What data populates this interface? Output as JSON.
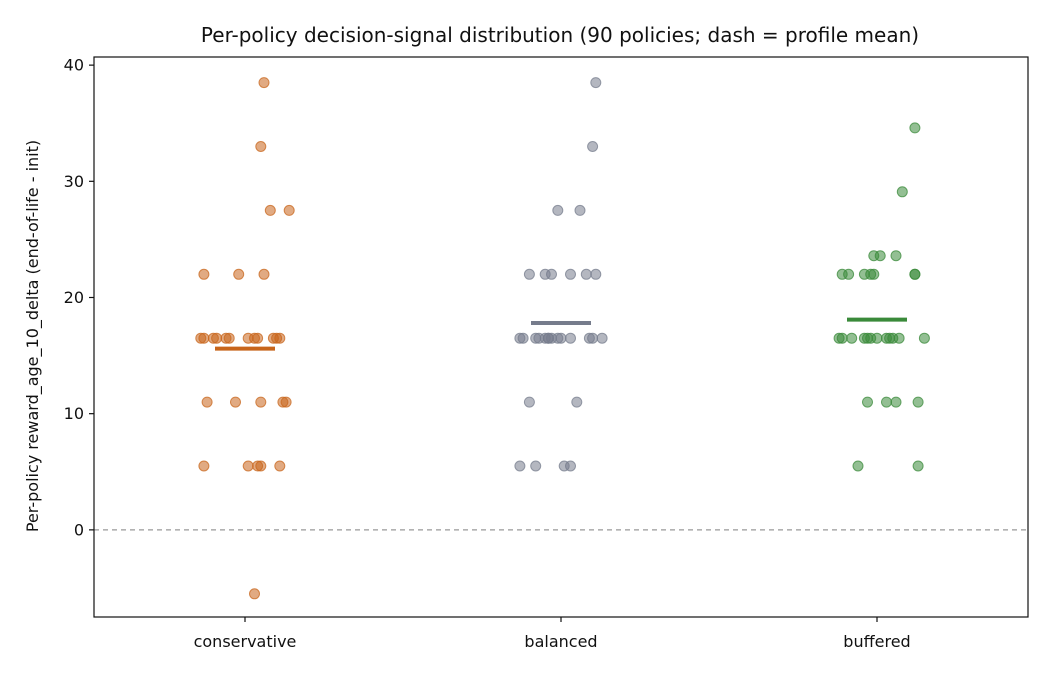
{
  "chart_data": {
    "type": "scatter",
    "title": "Per-policy decision-signal distribution (90 policies; dash = profile mean)",
    "xlabel": "",
    "ylabel": "Per-policy reward_age_10_delta (end-of-life - init)",
    "categories": [
      "conservative",
      "balanced",
      "buffered"
    ],
    "ylim": [
      -7.5,
      40.7
    ],
    "yticks": [
      0,
      10,
      20,
      30,
      40
    ],
    "reference_line": {
      "y": 0,
      "style": "dashed",
      "color": "#999999"
    },
    "grid": false,
    "series": [
      {
        "category": "conservative",
        "color": "#c8651b",
        "mean": 15.6,
        "points": [
          {
            "jitter": 0.06,
            "y": 38.5
          },
          {
            "jitter": 0.05,
            "y": 33.0
          },
          {
            "jitter": 0.08,
            "y": 27.5
          },
          {
            "jitter": 0.14,
            "y": 27.5
          },
          {
            "jitter": -0.13,
            "y": 22.0
          },
          {
            "jitter": -0.02,
            "y": 22.0
          },
          {
            "jitter": 0.06,
            "y": 22.0
          },
          {
            "jitter": -0.14,
            "y": 16.5
          },
          {
            "jitter": -0.13,
            "y": 16.5
          },
          {
            "jitter": -0.1,
            "y": 16.5
          },
          {
            "jitter": -0.09,
            "y": 16.5
          },
          {
            "jitter": -0.06,
            "y": 16.5
          },
          {
            "jitter": -0.05,
            "y": 16.5
          },
          {
            "jitter": 0.01,
            "y": 16.5
          },
          {
            "jitter": 0.03,
            "y": 16.5
          },
          {
            "jitter": 0.04,
            "y": 16.5
          },
          {
            "jitter": 0.09,
            "y": 16.5
          },
          {
            "jitter": 0.1,
            "y": 16.5
          },
          {
            "jitter": 0.11,
            "y": 16.5
          },
          {
            "jitter": -0.12,
            "y": 11.0
          },
          {
            "jitter": -0.03,
            "y": 11.0
          },
          {
            "jitter": 0.05,
            "y": 11.0
          },
          {
            "jitter": 0.12,
            "y": 11.0
          },
          {
            "jitter": 0.13,
            "y": 11.0
          },
          {
            "jitter": -0.13,
            "y": 5.5
          },
          {
            "jitter": 0.01,
            "y": 5.5
          },
          {
            "jitter": 0.04,
            "y": 5.5
          },
          {
            "jitter": 0.05,
            "y": 5.5
          },
          {
            "jitter": 0.11,
            "y": 5.5
          },
          {
            "jitter": 0.03,
            "y": -5.5
          }
        ]
      },
      {
        "category": "balanced",
        "color": "#767c8c",
        "mean": 17.8,
        "points": [
          {
            "jitter": 0.11,
            "y": 38.5
          },
          {
            "jitter": 0.1,
            "y": 33.0
          },
          {
            "jitter": -0.01,
            "y": 27.5
          },
          {
            "jitter": 0.06,
            "y": 27.5
          },
          {
            "jitter": -0.1,
            "y": 22.0
          },
          {
            "jitter": -0.05,
            "y": 22.0
          },
          {
            "jitter": -0.03,
            "y": 22.0
          },
          {
            "jitter": 0.03,
            "y": 22.0
          },
          {
            "jitter": 0.08,
            "y": 22.0
          },
          {
            "jitter": 0.11,
            "y": 22.0
          },
          {
            "jitter": -0.13,
            "y": 16.5
          },
          {
            "jitter": -0.12,
            "y": 16.5
          },
          {
            "jitter": -0.08,
            "y": 16.5
          },
          {
            "jitter": -0.07,
            "y": 16.5
          },
          {
            "jitter": -0.05,
            "y": 16.5
          },
          {
            "jitter": -0.04,
            "y": 16.5
          },
          {
            "jitter": -0.04,
            "y": 16.5
          },
          {
            "jitter": -0.03,
            "y": 16.5
          },
          {
            "jitter": -0.01,
            "y": 16.5
          },
          {
            "jitter": 0.0,
            "y": 16.5
          },
          {
            "jitter": 0.03,
            "y": 16.5
          },
          {
            "jitter": 0.09,
            "y": 16.5
          },
          {
            "jitter": 0.1,
            "y": 16.5
          },
          {
            "jitter": 0.13,
            "y": 16.5
          },
          {
            "jitter": -0.1,
            "y": 11.0
          },
          {
            "jitter": 0.05,
            "y": 11.0
          },
          {
            "jitter": -0.13,
            "y": 5.5
          },
          {
            "jitter": -0.08,
            "y": 5.5
          },
          {
            "jitter": 0.01,
            "y": 5.5
          },
          {
            "jitter": 0.03,
            "y": 5.5
          }
        ]
      },
      {
        "category": "buffered",
        "color": "#3a8a3a",
        "mean": 18.1,
        "points": [
          {
            "jitter": 0.12,
            "y": 34.6
          },
          {
            "jitter": 0.08,
            "y": 29.1
          },
          {
            "jitter": -0.01,
            "y": 23.6
          },
          {
            "jitter": 0.01,
            "y": 23.6
          },
          {
            "jitter": 0.06,
            "y": 23.6
          },
          {
            "jitter": -0.11,
            "y": 22.0
          },
          {
            "jitter": -0.09,
            "y": 22.0
          },
          {
            "jitter": -0.04,
            "y": 22.0
          },
          {
            "jitter": -0.02,
            "y": 22.0
          },
          {
            "jitter": -0.01,
            "y": 22.0
          },
          {
            "jitter": 0.12,
            "y": 22.0
          },
          {
            "jitter": 0.12,
            "y": 22.0
          },
          {
            "jitter": -0.12,
            "y": 16.5
          },
          {
            "jitter": -0.11,
            "y": 16.5
          },
          {
            "jitter": -0.08,
            "y": 16.5
          },
          {
            "jitter": -0.04,
            "y": 16.5
          },
          {
            "jitter": -0.03,
            "y": 16.5
          },
          {
            "jitter": -0.02,
            "y": 16.5
          },
          {
            "jitter": 0.0,
            "y": 16.5
          },
          {
            "jitter": 0.03,
            "y": 16.5
          },
          {
            "jitter": 0.04,
            "y": 16.5
          },
          {
            "jitter": 0.05,
            "y": 16.5
          },
          {
            "jitter": 0.07,
            "y": 16.5
          },
          {
            "jitter": 0.15,
            "y": 16.5
          },
          {
            "jitter": -0.03,
            "y": 11.0
          },
          {
            "jitter": 0.03,
            "y": 11.0
          },
          {
            "jitter": 0.06,
            "y": 11.0
          },
          {
            "jitter": 0.13,
            "y": 11.0
          },
          {
            "jitter": -0.06,
            "y": 5.5
          },
          {
            "jitter": 0.13,
            "y": 5.5
          }
        ]
      }
    ]
  }
}
